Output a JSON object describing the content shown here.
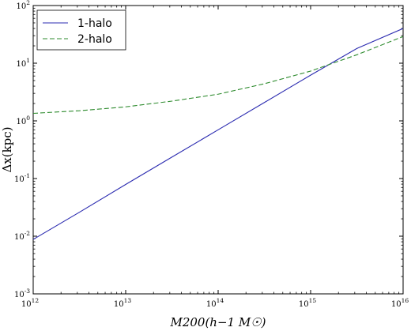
{
  "chart_data": {
    "type": "line",
    "xscale": "log",
    "yscale": "log",
    "xlim": [
      1000000000000.0,
      1e+16
    ],
    "ylim": [
      0.001,
      100
    ],
    "xlabel": "M200(h−1 M☉)",
    "ylabel": "Δx(kpc)",
    "legend_position": "top-left",
    "x_ticks": [
      {
        "value": 1000000000000.0,
        "base": "10",
        "exp": "12"
      },
      {
        "value": 10000000000000.0,
        "base": "10",
        "exp": "13"
      },
      {
        "value": 100000000000000.0,
        "base": "10",
        "exp": "14"
      },
      {
        "value": 1000000000000000.0,
        "base": "10",
        "exp": "15"
      },
      {
        "value": 1e+16,
        "base": "10",
        "exp": "16"
      }
    ],
    "y_ticks": [
      {
        "value": 0.001,
        "base": "10",
        "exp": "-3"
      },
      {
        "value": 0.01,
        "base": "10",
        "exp": "-2"
      },
      {
        "value": 0.1,
        "base": "10",
        "exp": "-1"
      },
      {
        "value": 1,
        "base": "10",
        "exp": "0"
      },
      {
        "value": 10,
        "base": "10",
        "exp": "1"
      },
      {
        "value": 100,
        "base": "10",
        "exp": "2"
      }
    ],
    "series": [
      {
        "name": "1-halo",
        "style": "solid",
        "color": "#2b2bb0",
        "x": [
          1000000000000.0,
          3160000000000.0,
          10000000000000.0,
          31600000000000.0,
          100000000000000.0,
          316000000000000.0,
          1000000000000000.0,
          3160000000000000.0,
          1e+16
        ],
        "y": [
          0.0088,
          0.026,
          0.079,
          0.235,
          0.7,
          2.08,
          6.2,
          18.0,
          40.0
        ]
      },
      {
        "name": "2-halo",
        "style": "dashed",
        "color": "#2e8b2e",
        "x": [
          1000000000000.0,
          3160000000000.0,
          10000000000000.0,
          31600000000000.0,
          100000000000000.0,
          316000000000000.0,
          1000000000000000.0,
          3160000000000000.0,
          1e+16
        ],
        "y": [
          1.35,
          1.5,
          1.75,
          2.2,
          2.9,
          4.4,
          7.3,
          14.0,
          29.0
        ]
      }
    ]
  }
}
